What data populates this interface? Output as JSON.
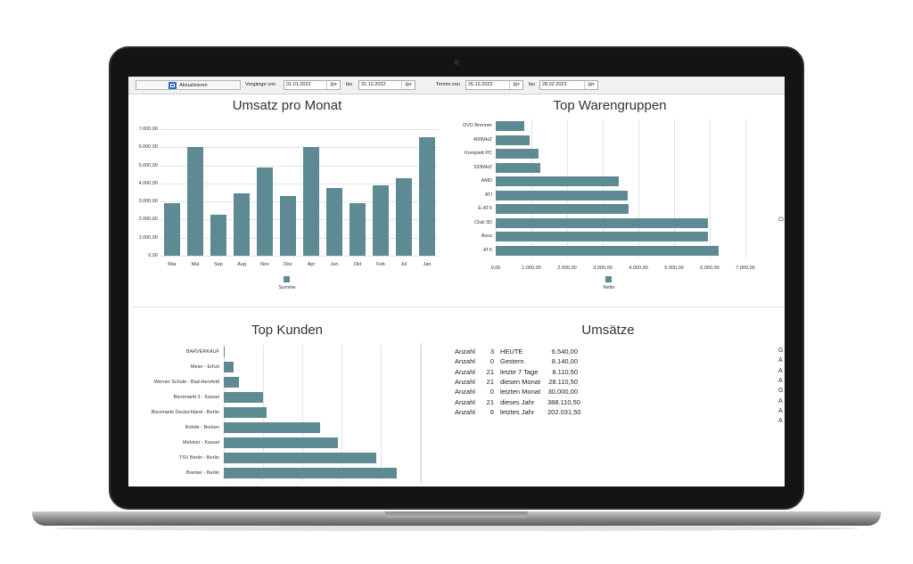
{
  "toolbar": {
    "refresh_label": "Aktualisieren",
    "vorgaenge_label": "Vorgänge von",
    "vorgaenge_from": "01.01.2022",
    "bis_label_1": "bis",
    "vorgaenge_to": "31.12.2022",
    "termin_label": "Termin von",
    "termin_from": "26.12.2022",
    "bis_label_2": "bis",
    "termin_to": "28.02.2023"
  },
  "panels": {
    "umsatz_title": "Umsatz pro Monat",
    "waren_title": "Top Warengruppen",
    "kunden_title": "Top Kunden",
    "umsaetze_title": "Umsätze"
  },
  "chart_data": [
    {
      "type": "bar",
      "title": "Umsatz pro Monat",
      "categories": [
        "Mar",
        "Mai",
        "Sep",
        "Aug",
        "Nov",
        "Dez",
        "Apr",
        "Jun",
        "Okt",
        "Feb",
        "Jul",
        "Jan"
      ],
      "series": [
        {
          "name": "Summe",
          "values": [
            2900,
            6000,
            2250,
            3450,
            4900,
            3280,
            6000,
            3750,
            2900,
            3900,
            4280,
            6550
          ]
        }
      ],
      "ylim": [
        0,
        7000
      ],
      "yticks": [
        "0,00",
        "1.000,00",
        "2.000,00",
        "3.000,00",
        "4.000,00",
        "5.000,00",
        "6.000,00",
        "7.000,00"
      ],
      "grid": true,
      "legend": "bottom"
    },
    {
      "type": "bar",
      "orientation": "horizontal",
      "title": "Top Warengruppen",
      "categories": [
        "DVD Brenner",
        "400MHZ",
        "Komplett PC",
        "333MHZ",
        "AMD",
        "ATI",
        "E-ATX",
        "Club 3D",
        "Asus",
        "ATX"
      ],
      "series": [
        {
          "name": "Netto",
          "values": [
            800,
            950,
            1200,
            1250,
            3450,
            3700,
            3720,
            5950,
            5950,
            6250
          ]
        }
      ],
      "xlim": [
        0,
        7000
      ],
      "xticks": [
        "0,00",
        "1.000,00",
        "2.000,00",
        "3.000,00",
        "4.000,00",
        "5.000,00",
        "6.000,00",
        "7.000,00"
      ],
      "grid": true,
      "legend": "bottom"
    },
    {
      "type": "bar",
      "orientation": "horizontal",
      "title": "Top Kunden",
      "categories": [
        "BARVERKAUF",
        "Meier - Erfurt",
        "Werner Schule - Bad-Hersfeld",
        "Büromarkt 3 - Kassel",
        "Büromarkt Deutschland - Berlin",
        "Rohde - Borken",
        "Metzker - Kassel",
        "TSV Berlin - Berlin",
        "Bremer - Berlin"
      ],
      "series": [
        {
          "values": [
            1,
            48,
            75,
            198,
            220,
            490,
            580,
            775,
            880
          ]
        }
      ],
      "xlim": [
        0,
        1000
      ],
      "grid": true
    }
  ],
  "umsaetze": [
    {
      "label": "Anzahl",
      "count": "3",
      "period": "HEUTE",
      "value": "6.540,00"
    },
    {
      "label": "Anzahl",
      "count": "0",
      "period": "Gestern",
      "value": "8.140,00"
    },
    {
      "label": "Anzahl",
      "count": "21",
      "period": "letzte 7 Tage",
      "value": "8.110,50"
    },
    {
      "label": "Anzahl",
      "count": "21",
      "period": "diesen Monat",
      "value": "28.110,50"
    },
    {
      "label": "Anzahl",
      "count": "0",
      "period": "letzten Monat",
      "value": "30.000,00"
    },
    {
      "label": "Anzahl",
      "count": "21",
      "period": "dieses Jahr",
      "value": "388.110,50"
    },
    {
      "label": "Anzahl",
      "count": "6",
      "period": "letztes Jahr",
      "value": "202.031,50"
    }
  ],
  "cutoff_right_top": [
    "Cl"
  ],
  "cutoff_right_bottom": [
    "G",
    "A",
    "A",
    "A",
    "G",
    "A",
    "A",
    "A"
  ],
  "colors": {
    "bar": "#5e8a93",
    "grid": "#e3e3e3"
  }
}
